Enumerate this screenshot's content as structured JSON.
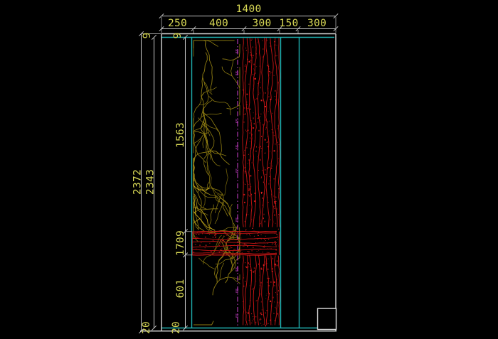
{
  "dims": {
    "overall_width": "1400",
    "width_segments": [
      "250",
      "400",
      "300",
      "150",
      "300"
    ],
    "overall_height": "2372",
    "inner_height": "2343",
    "section_heights": [
      "1563",
      "1709",
      "601"
    ],
    "top_offsets": [
      "9",
      "9"
    ],
    "bottom_offsets": [
      "20",
      "20"
    ],
    "centerline_labels": [
      "65",
      "65",
      "65",
      "65",
      "65",
      "65",
      "65",
      "65",
      "65"
    ]
  },
  "colors": {
    "bg": "#000000",
    "cyan": "#1FB2B2",
    "frame": "#D6D6D6",
    "dim": "#C2C2C2",
    "yellow": "#D8D855",
    "red": "#C41414",
    "magenta": "#BE3CBE",
    "vein": "#8F7D12",
    "white": "#E2E2E2"
  }
}
